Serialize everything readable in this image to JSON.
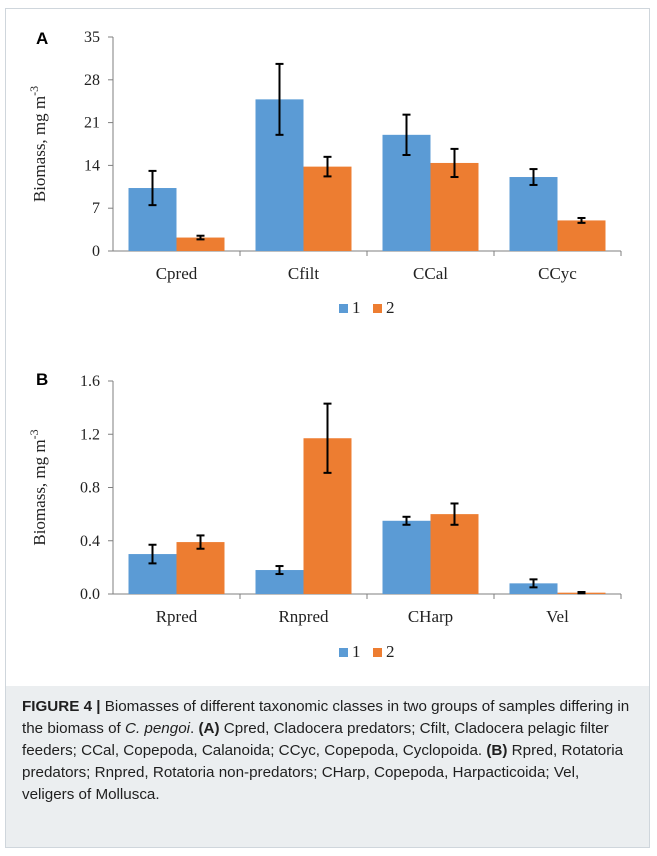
{
  "chart_data": [
    {
      "panel": "A",
      "type": "bar",
      "ylabel": "Biomass,  mg m",
      "ylabel_superscript": "-3",
      "categories": [
        "Cpred",
        "Cfilt",
        "CCal",
        "CCyc"
      ],
      "series": [
        {
          "name": "1",
          "color": "#5b9bd5",
          "values": [
            10.3,
            24.8,
            19.0,
            12.1
          ],
          "errors": [
            2.8,
            5.8,
            3.3,
            1.3
          ]
        },
        {
          "name": "2",
          "color": "#ed7d31",
          "values": [
            2.2,
            13.8,
            14.4,
            5.0
          ],
          "errors": [
            0.3,
            1.6,
            2.3,
            0.4
          ]
        }
      ],
      "yticks": [
        "0",
        "7",
        "14",
        "21",
        "28",
        "35"
      ],
      "ylim": [
        0,
        35
      ],
      "grid": false,
      "legend": "bottom"
    },
    {
      "panel": "B",
      "type": "bar",
      "ylabel": "Biomass,  mg m",
      "ylabel_superscript": "-3",
      "categories": [
        "Rpred",
        "Rnpred",
        "CHarp",
        "Vel"
      ],
      "series": [
        {
          "name": "1",
          "color": "#5b9bd5",
          "values": [
            0.3,
            0.18,
            0.55,
            0.08
          ],
          "errors": [
            0.07,
            0.03,
            0.03,
            0.03
          ]
        },
        {
          "name": "2",
          "color": "#ed7d31",
          "values": [
            0.39,
            1.17,
            0.6,
            0.01
          ],
          "errors": [
            0.05,
            0.26,
            0.08,
            0.005
          ]
        }
      ],
      "yticks": [
        "0.0",
        "0.4",
        "0.8",
        "1.2",
        "1.6"
      ],
      "ylim": [
        0,
        1.6
      ],
      "grid": false,
      "legend": "bottom"
    }
  ],
  "caption": {
    "figure_label": "FIGURE 4 |",
    "text_1": " Biomasses of different taxonomic classes in two groups of samples differing in the biomass of ",
    "species": "C. pengoi",
    "text_2": ". ",
    "label_a": "(A)",
    "text_a": " Cpred, Cladocera predators; Cfilt, Cladocera pelagic filter feeders; CCal, Copepoda, Calanoida; CCyc, Copepoda, Cyclopoida. ",
    "label_b": "(B)",
    "text_b": " Rpred, Rotatoria predators; Rnpred, Rotatoria non-predators; CHarp, Copepoda, Harpacticoida; Vel, veligers of Mollusca."
  }
}
